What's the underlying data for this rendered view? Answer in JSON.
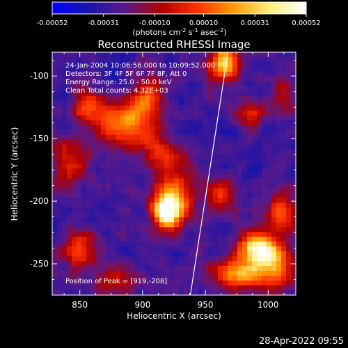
{
  "chart_data": {
    "type": "heatmap",
    "title": "Reconstructed RHESSI Image",
    "xlabel": "Heliocentric X (arcsec)",
    "ylabel": "Heliocentric Y (arcsec)",
    "xlim": [
      828,
      1022
    ],
    "ylim": [
      -275,
      -81
    ],
    "xticks": [
      850,
      900,
      950,
      1000
    ],
    "yticks": [
      -100,
      -150,
      -200,
      -250
    ],
    "colorbar": {
      "label_main": "(photons cm",
      "sup1": "-2",
      "mid1": " s",
      "sup2": "-1",
      "mid2": " asec",
      "sup3": "-2",
      "end": ")",
      "range": [
        -0.00052,
        0.00052
      ],
      "ticks": [
        "-0.00052",
        "-0.00031",
        "-0.00010",
        "0.00010",
        "0.00031",
        "0.00052"
      ],
      "colors": [
        "#0000ff",
        "#1a14a8",
        "#5a1a8a",
        "#b00000",
        "#ff3000",
        "#ff9a00",
        "#ffee80",
        "#ffffff"
      ]
    },
    "annotations": [
      "24-Jan-2004 10:06:56.000 to 10:09:52.000",
      "Detectors: 3F 4F 5F 6F 7F 8F, Att 0",
      "Energy Range: 25.0 - 50.0 keV",
      "Clean    Total counts: 4.32E+03"
    ],
    "peak_label": "Position of Peak = [919,-208]",
    "peak": [
      919,
      -208
    ],
    "limb_line": [
      [
        938,
        -275
      ],
      [
        968,
        -81
      ]
    ],
    "hotspots": [
      {
        "x": 919,
        "y": -208,
        "amp": 1.0,
        "sx": 7,
        "sy": 9
      },
      {
        "x": 925,
        "y": -195,
        "amp": 0.55,
        "sx": 12,
        "sy": 18
      },
      {
        "x": 965,
        "y": -90,
        "amp": 0.8,
        "sx": 8,
        "sy": 10
      },
      {
        "x": 885,
        "y": -140,
        "amp": 0.6,
        "sx": 14,
        "sy": 12
      },
      {
        "x": 858,
        "y": -125,
        "amp": 0.45,
        "sx": 10,
        "sy": 10
      },
      {
        "x": 903,
        "y": -120,
        "amp": 0.45,
        "sx": 10,
        "sy": 14
      },
      {
        "x": 912,
        "y": -160,
        "amp": 0.4,
        "sx": 9,
        "sy": 9
      },
      {
        "x": 840,
        "y": -170,
        "amp": 0.45,
        "sx": 10,
        "sy": 12
      },
      {
        "x": 990,
        "y": -238,
        "amp": 0.85,
        "sx": 10,
        "sy": 9
      },
      {
        "x": 975,
        "y": -258,
        "amp": 0.7,
        "sx": 14,
        "sy": 8
      },
      {
        "x": 1005,
        "y": -250,
        "amp": 0.6,
        "sx": 10,
        "sy": 14
      },
      {
        "x": 1010,
        "y": -208,
        "amp": 0.5,
        "sx": 8,
        "sy": 10
      },
      {
        "x": 963,
        "y": -195,
        "amp": 0.4,
        "sx": 8,
        "sy": 10
      },
      {
        "x": 848,
        "y": -238,
        "amp": 0.45,
        "sx": 10,
        "sy": 10
      },
      {
        "x": 880,
        "y": -262,
        "amp": 0.35,
        "sx": 12,
        "sy": 8
      },
      {
        "x": 985,
        "y": -130,
        "amp": 0.35,
        "sx": 8,
        "sy": 8
      },
      {
        "x": 1012,
        "y": -115,
        "amp": 0.3,
        "sx": 6,
        "sy": 10
      }
    ]
  },
  "footer": {
    "timestamp": "28-Apr-2022 09:55"
  }
}
